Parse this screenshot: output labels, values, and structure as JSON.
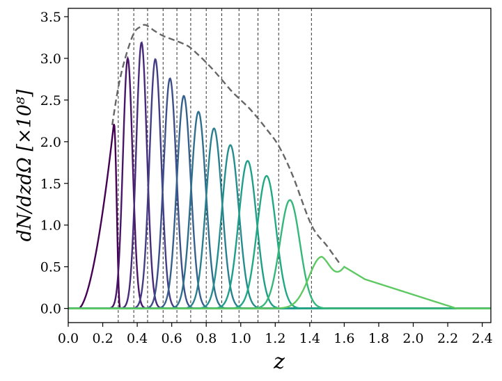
{
  "chart_data": {
    "type": "line",
    "xlabel": "z",
    "ylabel": "dN/dzdΩ [×10⁸]",
    "xlim": [
      0.0,
      2.45
    ],
    "ylim": [
      -0.17,
      3.6
    ],
    "x_ticks": [
      "0.0",
      "0.2",
      "0.4",
      "0.6",
      "0.8",
      "1.0",
      "1.2",
      "1.4",
      "1.6",
      "1.8",
      "2.0",
      "2.2",
      "2.4"
    ],
    "y_ticks": [
      "0.0",
      "0.5",
      "1.0",
      "1.5",
      "2.0",
      "2.5",
      "3.0",
      "3.5"
    ],
    "grid": false,
    "bin_edges": [
      0.29,
      0.38,
      0.46,
      0.55,
      0.63,
      0.71,
      0.8,
      0.89,
      0.99,
      1.1,
      1.22,
      1.41
    ],
    "total_curve": {
      "style": "dashed",
      "color": "#666666",
      "x": [
        0.255,
        0.29,
        0.33,
        0.38,
        0.42,
        0.45,
        0.5,
        0.55,
        0.6,
        0.65,
        0.7,
        0.75,
        0.8,
        0.85,
        0.9,
        0.95,
        1.0,
        1.05,
        1.1,
        1.15,
        1.22,
        1.3,
        1.41,
        1.5,
        1.58
      ],
      "y": [
        2.2,
        2.65,
        3.0,
        3.3,
        3.38,
        3.4,
        3.33,
        3.27,
        3.23,
        3.19,
        3.14,
        3.05,
        2.95,
        2.84,
        2.72,
        2.6,
        2.5,
        2.4,
        2.28,
        2.15,
        1.95,
        1.6,
        1.0,
        0.75,
        0.52
      ]
    },
    "series": [
      {
        "peak_z": 0.265,
        "peak": 2.23,
        "color": "#440154"
      },
      {
        "peak_z": 0.345,
        "peak": 3.0,
        "color": "#471668"
      },
      {
        "peak_z": 0.425,
        "peak": 3.19,
        "color": "#472a7a"
      },
      {
        "peak_z": 0.505,
        "peak": 2.99,
        "color": "#433d84"
      },
      {
        "peak_z": 0.59,
        "peak": 2.76,
        "color": "#3c4f8a"
      },
      {
        "peak_z": 0.67,
        "peak": 2.55,
        "color": "#35608d"
      },
      {
        "peak_z": 0.755,
        "peak": 2.36,
        "color": "#2f6f8e"
      },
      {
        "peak_z": 0.845,
        "peak": 2.16,
        "color": "#2a7f8e"
      },
      {
        "peak_z": 0.94,
        "peak": 1.96,
        "color": "#248d8d"
      },
      {
        "peak_z": 1.04,
        "peak": 1.77,
        "color": "#1f9e89"
      },
      {
        "peak_z": 1.15,
        "peak": 1.59,
        "color": "#22a884"
      },
      {
        "peak_z": 1.285,
        "peak": 1.3,
        "color": "#35b779"
      },
      {
        "peak_z": 1.47,
        "peak": 0.62,
        "color": "#5ec962"
      }
    ]
  }
}
